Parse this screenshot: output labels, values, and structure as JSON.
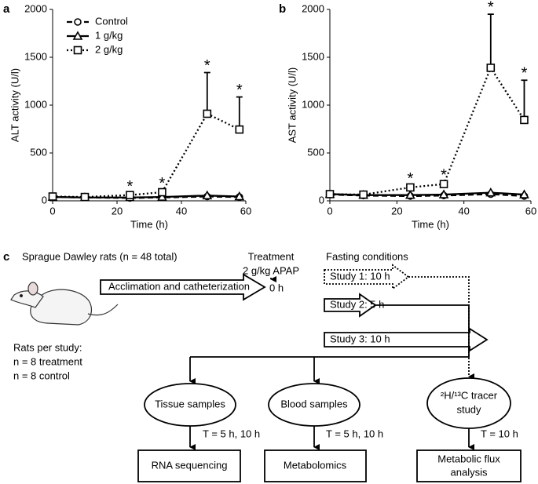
{
  "chart_data": [
    {
      "type": "line",
      "panel": "a",
      "ylabel": "ALT activity (U/l)",
      "xlabel": "Time (h)",
      "x": [
        0,
        10,
        24,
        34,
        48,
        58
      ],
      "xlim": [
        0,
        60
      ],
      "xticks": [
        0,
        20,
        40,
        60
      ],
      "ylim": [
        0,
        2000
      ],
      "yticks": [
        0,
        500,
        1000,
        1500,
        2000
      ],
      "legend": true,
      "legend_position": "upper left",
      "series": [
        {
          "name": "Control",
          "color": "#000000",
          "marker": "circle",
          "dash": "dashed",
          "values": [
            40,
            35,
            30,
            35,
            45,
            40
          ]
        },
        {
          "name": "1 g/kg",
          "color": "#000000",
          "marker": "triangle",
          "dash": "solid",
          "values": [
            40,
            35,
            35,
            40,
            55,
            45
          ]
        },
        {
          "name": "2 g/kg",
          "color": "#000000",
          "marker": "square",
          "dash": "dotted",
          "values": [
            45,
            40,
            60,
            90,
            910,
            745
          ],
          "errors": [
            10,
            10,
            15,
            20,
            430,
            340
          ]
        }
      ],
      "annotations": [
        {
          "x": 24,
          "label": "*"
        },
        {
          "x": 34,
          "label": "*"
        },
        {
          "x": 48,
          "label": "*"
        },
        {
          "x": 58,
          "label": "*"
        }
      ]
    },
    {
      "type": "line",
      "panel": "b",
      "ylabel": "AST activity (U/l)",
      "xlabel": "Time (h)",
      "x": [
        0,
        10,
        24,
        34,
        48,
        58
      ],
      "xlim": [
        0,
        60
      ],
      "xticks": [
        0,
        20,
        40,
        60
      ],
      "ylim": [
        0,
        2000
      ],
      "yticks": [
        0,
        500,
        1000,
        1500,
        2000
      ],
      "legend": false,
      "series": [
        {
          "name": "Control",
          "color": "#000000",
          "marker": "circle",
          "dash": "dashed",
          "values": [
            65,
            55,
            50,
            55,
            70,
            50
          ]
        },
        {
          "name": "1 g/kg",
          "color": "#000000",
          "marker": "triangle",
          "dash": "solid",
          "values": [
            70,
            60,
            60,
            65,
            85,
            65
          ]
        },
        {
          "name": "2 g/kg",
          "color": "#000000",
          "marker": "square",
          "dash": "dotted",
          "values": [
            70,
            65,
            140,
            175,
            1390,
            845
          ],
          "errors": [
            10,
            10,
            20,
            20,
            560,
            415
          ]
        }
      ],
      "annotations": [
        {
          "x": 24,
          "label": "*"
        },
        {
          "x": 34,
          "label": "*"
        },
        {
          "x": 48,
          "label": "*"
        },
        {
          "x": 58,
          "label": "*"
        }
      ]
    }
  ],
  "diagram": {
    "panel": "c",
    "title": "Sprague Dawley rats (n = 48 total)",
    "rats_per_study": [
      "Rats per study:",
      "n = 8 treatment",
      "n = 8 control"
    ],
    "treatment": [
      "Treatment",
      "2 g/kg APAP"
    ],
    "acclimation": "Acclimation and catheterization",
    "zero": "0 h",
    "fasting_title": "Fasting conditions",
    "studies": [
      "Study 1: 10 h",
      "Study 2: 5 h",
      "Study 3: 10 h"
    ],
    "samples": [
      "Tissue samples",
      "Blood samples"
    ],
    "tracer": [
      "²H/¹³C tracer",
      "study"
    ],
    "times": [
      "T = 5 h, 10 h",
      "T = 5 h, 10 h",
      "T = 10 h"
    ],
    "outputs": [
      "RNA sequencing",
      "Metabolomics"
    ],
    "flux": [
      "Metabolic flux",
      "analysis"
    ]
  }
}
